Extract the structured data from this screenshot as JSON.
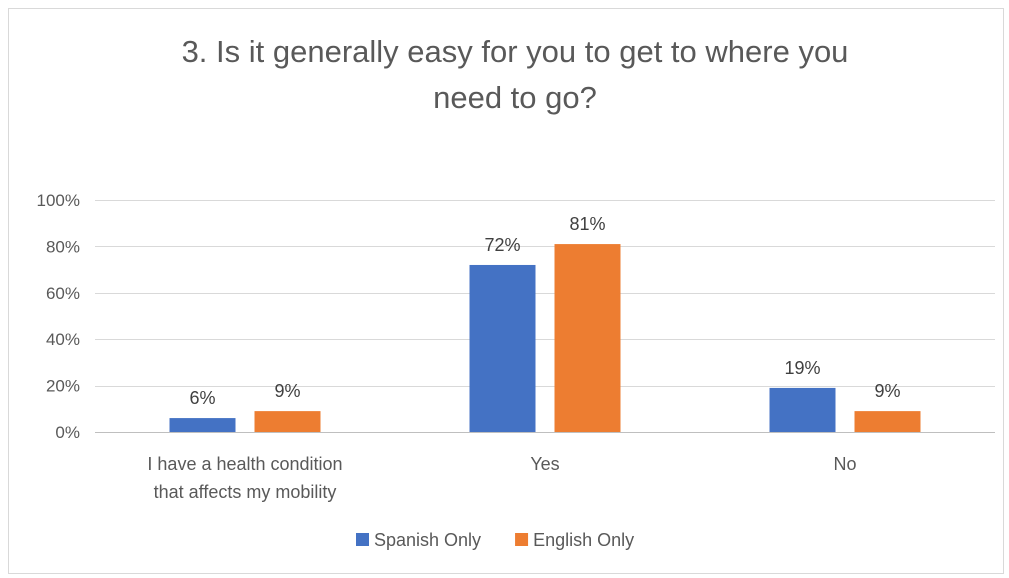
{
  "chart_data": {
    "type": "bar",
    "title_lines": [
      "3. Is it generally easy for you to get to where you",
      "need to go?"
    ],
    "categories": [
      [
        "I have a health condition",
        "that affects my mobility"
      ],
      [
        "Yes"
      ],
      [
        "No"
      ]
    ],
    "series": [
      {
        "name": "Spanish Only",
        "color": "#4472c4",
        "values": [
          6,
          72,
          19
        ],
        "labels": [
          "6%",
          "72%",
          "19%"
        ]
      },
      {
        "name": "English Only",
        "color": "#ed7d31",
        "values": [
          9,
          81,
          9
        ],
        "labels": [
          "9%",
          "81%",
          "9%"
        ]
      }
    ],
    "y_ticks": [
      {
        "value": 0,
        "label": "0%"
      },
      {
        "value": 20,
        "label": "20%"
      },
      {
        "value": 40,
        "label": "40%"
      },
      {
        "value": 60,
        "label": "60%"
      },
      {
        "value": 80,
        "label": "80%"
      },
      {
        "value": 100,
        "label": "100%"
      }
    ],
    "ylim": [
      0,
      100
    ],
    "grid": true,
    "legend_position": "bottom"
  }
}
